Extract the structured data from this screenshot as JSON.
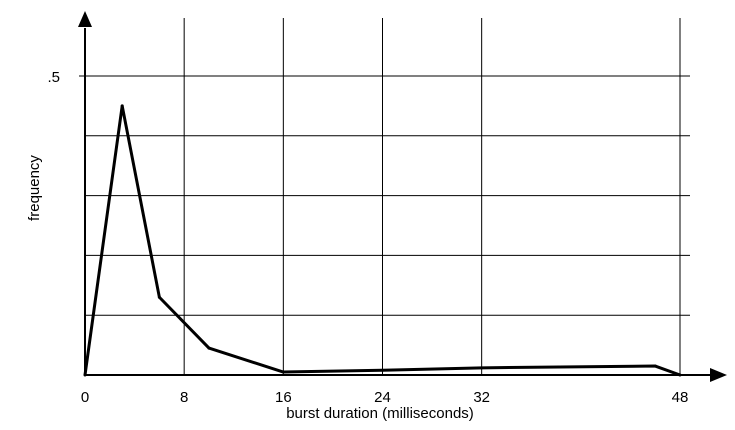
{
  "chart_data": {
    "type": "line",
    "title": "",
    "xlabel": "burst duration (milliseconds)",
    "ylabel": "frequency",
    "x_ticks": [
      0,
      8,
      16,
      24,
      32,
      48
    ],
    "x_tick_labels": [
      "0",
      "8",
      "16",
      "24",
      "32",
      "48"
    ],
    "y_ticks": [
      0.5
    ],
    "y_tick_labels": [
      ".5"
    ],
    "xlim": [
      0,
      48
    ],
    "ylim": [
      0,
      0.5
    ],
    "grid": true,
    "gridlines_y": [
      0.1,
      0.2,
      0.3,
      0.4,
      0.5
    ],
    "series": [
      {
        "x": [
          0,
          3,
          6,
          10,
          16,
          24,
          32,
          46,
          48
        ],
        "y": [
          0,
          0.45,
          0.13,
          0.045,
          0.005,
          0.008,
          0.012,
          0.015,
          0
        ]
      }
    ],
    "colors": {
      "line": "#000000",
      "grid": "#000000",
      "background": "#ffffff"
    }
  }
}
